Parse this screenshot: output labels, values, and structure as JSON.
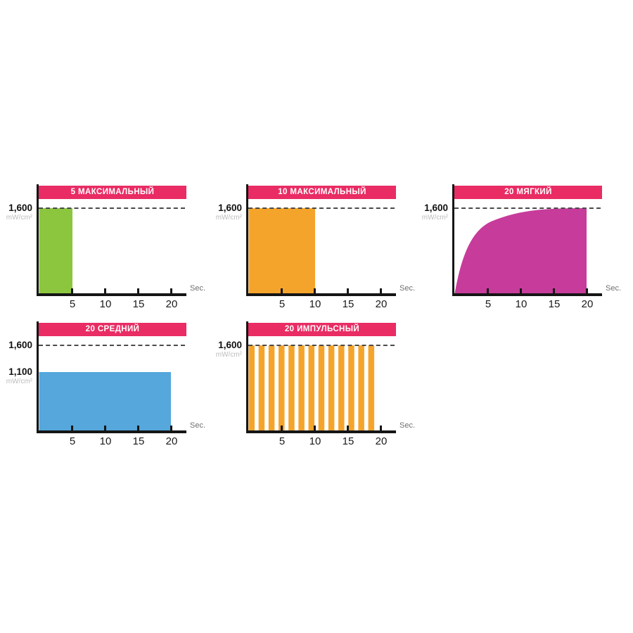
{
  "page": {
    "background": "#ffffff"
  },
  "styles": {
    "header_bg": "background:#E92C64",
    "accent_header": "#E92C64",
    "axis_color": "#151515",
    "dashed_line_color": "#4a4a4a",
    "unit_text_color": "#bcbcbc"
  },
  "chart_data": [
    {
      "type": "bar",
      "title": "5 МАКСИМАЛЬНЫЙ",
      "color": "#8CC63F",
      "y_axis_label": "1,600",
      "y_axis_unit": "mW/cm²",
      "dashed_reference_mw_cm2": 1600,
      "x_ticks": [
        "5",
        "10",
        "15",
        "20"
      ],
      "x_unit": "Sec.",
      "x_range_sec": [
        0,
        22
      ],
      "y_range_mw_cm2": [
        0,
        1600
      ],
      "bar": {
        "from_sec": 0,
        "to_sec": 5,
        "intensity_mw_cm2": 1600
      }
    },
    {
      "type": "bar",
      "title": "10 МАКСИМАЛЬНЫЙ",
      "color": "#F5A42B",
      "y_axis_label": "1,600",
      "y_axis_unit": "mW/cm²",
      "dashed_reference_mw_cm2": 1600,
      "x_ticks": [
        "5",
        "10",
        "15",
        "20"
      ],
      "x_unit": "Sec.",
      "x_range_sec": [
        0,
        22
      ],
      "y_range_mw_cm2": [
        0,
        1600
      ],
      "bar": {
        "from_sec": 0,
        "to_sec": 10,
        "intensity_mw_cm2": 1600
      }
    },
    {
      "type": "area",
      "title": "20 МЯГКИЙ",
      "color": "#C73B9B",
      "y_axis_label": "1,600",
      "y_axis_unit": "mW/cm²",
      "dashed_reference_mw_cm2": 1600,
      "x_ticks": [
        "5",
        "10",
        "15",
        "20"
      ],
      "x_unit": "Sec.",
      "x_range_sec": [
        0,
        22
      ],
      "y_range_mw_cm2": [
        0,
        1600
      ],
      "curve_points_sec_mw": [
        [
          0,
          0
        ],
        [
          2.5,
          820
        ],
        [
          5,
          1220
        ],
        [
          10,
          1510
        ],
        [
          13,
          1580
        ],
        [
          16,
          1600
        ],
        [
          20,
          1600
        ]
      ]
    },
    {
      "type": "bar",
      "title": "20 СРЕДНИЙ",
      "color": "#55A7DC",
      "y_axis_label": "1,600",
      "extra_y_label": "1,100",
      "y_axis_unit": "mW/cm²",
      "dashed_reference_mw_cm2": 1600,
      "x_ticks": [
        "5",
        "10",
        "15",
        "20"
      ],
      "x_unit": "Sec.",
      "x_range_sec": [
        0,
        22
      ],
      "y_range_mw_cm2": [
        0,
        1600
      ],
      "bar": {
        "from_sec": 0,
        "to_sec": 20,
        "intensity_mw_cm2": 1100
      }
    },
    {
      "type": "pulse-bar",
      "title": "20 ИМПУЛЬСНЫЙ",
      "color": "#F5A42B",
      "y_axis_label": "1,600",
      "y_axis_unit": "mW/cm²",
      "dashed_reference_mw_cm2": 1600,
      "x_ticks": [
        "5",
        "10",
        "15",
        "20"
      ],
      "x_unit": "Sec.",
      "x_range_sec": [
        0,
        22
      ],
      "y_range_mw_cm2": [
        0,
        1600
      ],
      "pulses": {
        "count": 13,
        "intensity_mw_cm2": 1600,
        "span_sec": [
          0,
          19.6
        ],
        "duty_cycle": 0.6
      }
    }
  ]
}
